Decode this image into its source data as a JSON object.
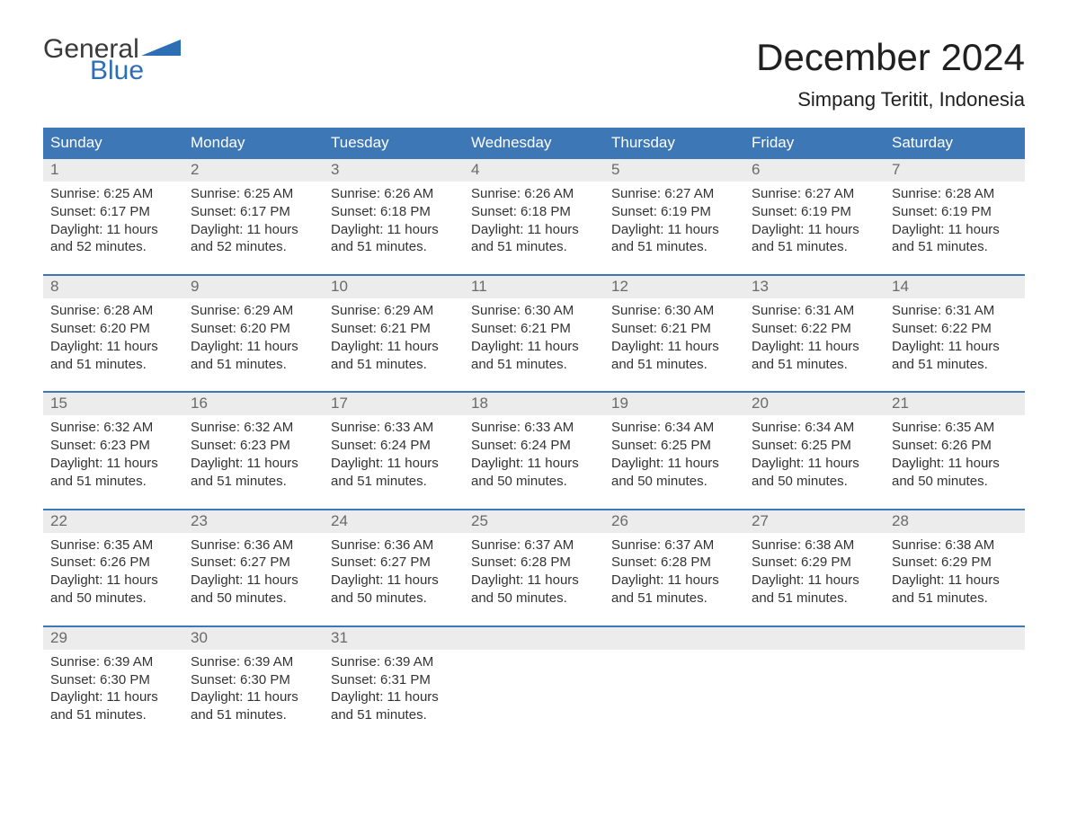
{
  "brand": {
    "general": "General",
    "blue": "Blue"
  },
  "colors": {
    "header_bg": "#3d77b6",
    "accent_blue": "#2d6eb5",
    "day_number_bg": "#ececec",
    "day_number_color": "#6a6a6a",
    "body_text": "#333333",
    "title_color": "#202020",
    "background": "#ffffff"
  },
  "title": "December 2024",
  "location": "Simpang Teritit, Indonesia",
  "weekdays": [
    "Sunday",
    "Monday",
    "Tuesday",
    "Wednesday",
    "Thursday",
    "Friday",
    "Saturday"
  ],
  "layout": {
    "label_sunrise": "Sunrise:",
    "label_sunset": "Sunset:",
    "label_daylight_prefix": "Daylight:",
    "label_and": "and",
    "label_minutes": "minutes."
  },
  "weeks": [
    [
      {
        "day": "1",
        "sunrise": "6:25 AM",
        "sunset": "6:17 PM",
        "dl_h": "11 hours",
        "dl_m": "52"
      },
      {
        "day": "2",
        "sunrise": "6:25 AM",
        "sunset": "6:17 PM",
        "dl_h": "11 hours",
        "dl_m": "52"
      },
      {
        "day": "3",
        "sunrise": "6:26 AM",
        "sunset": "6:18 PM",
        "dl_h": "11 hours",
        "dl_m": "51"
      },
      {
        "day": "4",
        "sunrise": "6:26 AM",
        "sunset": "6:18 PM",
        "dl_h": "11 hours",
        "dl_m": "51"
      },
      {
        "day": "5",
        "sunrise": "6:27 AM",
        "sunset": "6:19 PM",
        "dl_h": "11 hours",
        "dl_m": "51"
      },
      {
        "day": "6",
        "sunrise": "6:27 AM",
        "sunset": "6:19 PM",
        "dl_h": "11 hours",
        "dl_m": "51"
      },
      {
        "day": "7",
        "sunrise": "6:28 AM",
        "sunset": "6:19 PM",
        "dl_h": "11 hours",
        "dl_m": "51"
      }
    ],
    [
      {
        "day": "8",
        "sunrise": "6:28 AM",
        "sunset": "6:20 PM",
        "dl_h": "11 hours",
        "dl_m": "51"
      },
      {
        "day": "9",
        "sunrise": "6:29 AM",
        "sunset": "6:20 PM",
        "dl_h": "11 hours",
        "dl_m": "51"
      },
      {
        "day": "10",
        "sunrise": "6:29 AM",
        "sunset": "6:21 PM",
        "dl_h": "11 hours",
        "dl_m": "51"
      },
      {
        "day": "11",
        "sunrise": "6:30 AM",
        "sunset": "6:21 PM",
        "dl_h": "11 hours",
        "dl_m": "51"
      },
      {
        "day": "12",
        "sunrise": "6:30 AM",
        "sunset": "6:21 PM",
        "dl_h": "11 hours",
        "dl_m": "51"
      },
      {
        "day": "13",
        "sunrise": "6:31 AM",
        "sunset": "6:22 PM",
        "dl_h": "11 hours",
        "dl_m": "51"
      },
      {
        "day": "14",
        "sunrise": "6:31 AM",
        "sunset": "6:22 PM",
        "dl_h": "11 hours",
        "dl_m": "51"
      }
    ],
    [
      {
        "day": "15",
        "sunrise": "6:32 AM",
        "sunset": "6:23 PM",
        "dl_h": "11 hours",
        "dl_m": "51"
      },
      {
        "day": "16",
        "sunrise": "6:32 AM",
        "sunset": "6:23 PM",
        "dl_h": "11 hours",
        "dl_m": "51"
      },
      {
        "day": "17",
        "sunrise": "6:33 AM",
        "sunset": "6:24 PM",
        "dl_h": "11 hours",
        "dl_m": "51"
      },
      {
        "day": "18",
        "sunrise": "6:33 AM",
        "sunset": "6:24 PM",
        "dl_h": "11 hours",
        "dl_m": "50"
      },
      {
        "day": "19",
        "sunrise": "6:34 AM",
        "sunset": "6:25 PM",
        "dl_h": "11 hours",
        "dl_m": "50"
      },
      {
        "day": "20",
        "sunrise": "6:34 AM",
        "sunset": "6:25 PM",
        "dl_h": "11 hours",
        "dl_m": "50"
      },
      {
        "day": "21",
        "sunrise": "6:35 AM",
        "sunset": "6:26 PM",
        "dl_h": "11 hours",
        "dl_m": "50"
      }
    ],
    [
      {
        "day": "22",
        "sunrise": "6:35 AM",
        "sunset": "6:26 PM",
        "dl_h": "11 hours",
        "dl_m": "50"
      },
      {
        "day": "23",
        "sunrise": "6:36 AM",
        "sunset": "6:27 PM",
        "dl_h": "11 hours",
        "dl_m": "50"
      },
      {
        "day": "24",
        "sunrise": "6:36 AM",
        "sunset": "6:27 PM",
        "dl_h": "11 hours",
        "dl_m": "50"
      },
      {
        "day": "25",
        "sunrise": "6:37 AM",
        "sunset": "6:28 PM",
        "dl_h": "11 hours",
        "dl_m": "50"
      },
      {
        "day": "26",
        "sunrise": "6:37 AM",
        "sunset": "6:28 PM",
        "dl_h": "11 hours",
        "dl_m": "51"
      },
      {
        "day": "27",
        "sunrise": "6:38 AM",
        "sunset": "6:29 PM",
        "dl_h": "11 hours",
        "dl_m": "51"
      },
      {
        "day": "28",
        "sunrise": "6:38 AM",
        "sunset": "6:29 PM",
        "dl_h": "11 hours",
        "dl_m": "51"
      }
    ],
    [
      {
        "day": "29",
        "sunrise": "6:39 AM",
        "sunset": "6:30 PM",
        "dl_h": "11 hours",
        "dl_m": "51"
      },
      {
        "day": "30",
        "sunrise": "6:39 AM",
        "sunset": "6:30 PM",
        "dl_h": "11 hours",
        "dl_m": "51"
      },
      {
        "day": "31",
        "sunrise": "6:39 AM",
        "sunset": "6:31 PM",
        "dl_h": "11 hours",
        "dl_m": "51"
      },
      null,
      null,
      null,
      null
    ]
  ]
}
